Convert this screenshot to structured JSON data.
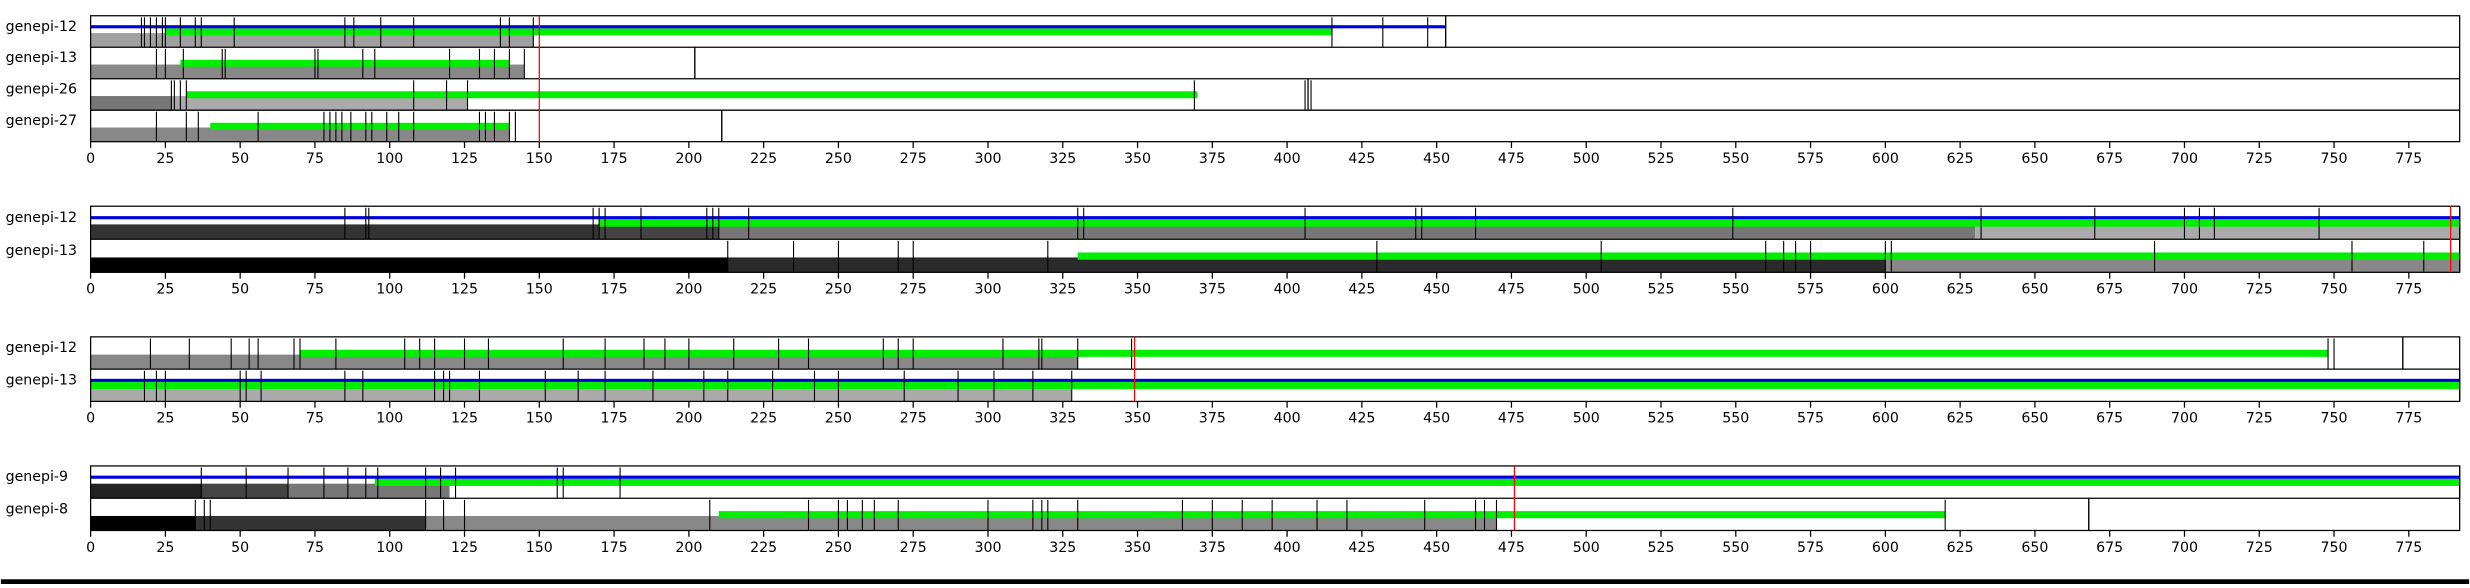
{
  "chart_data": [
    {
      "type": "timeline",
      "xlim": [
        0,
        792
      ],
      "xticks": [
        0,
        25,
        50,
        75,
        100,
        125,
        150,
        175,
        200,
        225,
        250,
        275,
        300,
        325,
        350,
        375,
        400,
        425,
        450,
        475,
        500,
        525,
        550,
        575,
        600,
        625,
        650,
        675,
        700,
        725,
        750,
        775
      ],
      "marker": 150,
      "marker_color": "#ff0000",
      "rows": [
        {
          "name": "genepi-12",
          "end": 453,
          "gray": [
            [
              0,
              148,
              "#a0a0a0"
            ]
          ],
          "green": [
            [
              25,
              415
            ]
          ],
          "blue": [
            [
              0,
              453
            ]
          ],
          "lines": [
            17,
            18,
            20,
            22,
            24,
            25,
            30,
            35,
            37,
            48,
            85,
            88,
            97,
            108,
            137,
            140,
            148,
            415,
            432,
            447,
            453
          ]
        },
        {
          "name": "genepi-13",
          "end": 202,
          "gray": [
            [
              0,
              145,
              "#888888"
            ]
          ],
          "green": [
            [
              30,
              140
            ]
          ],
          "blue": [],
          "lines": [
            22,
            25,
            31,
            44,
            45,
            75,
            76,
            91,
            95,
            120,
            130,
            135,
            140,
            145,
            202
          ]
        },
        {
          "name": "genepi-26",
          "end": 407,
          "gray": [
            [
              0,
              27,
              "#777777"
            ],
            [
              27,
              126,
              "#aaaaaa"
            ]
          ],
          "green": [
            [
              32,
              370
            ]
          ],
          "blue": [],
          "lines": [
            27,
            28,
            30,
            32,
            108,
            119,
            126,
            369,
            406,
            408
          ]
        },
        {
          "name": "genepi-27",
          "end": 211,
          "gray": [
            [
              0,
              140,
              "#888888"
            ]
          ],
          "green": [
            [
              40,
              140
            ]
          ],
          "blue": [],
          "lines": [
            22,
            32,
            36,
            56,
            78,
            80,
            82,
            84,
            87,
            92,
            94,
            99,
            103,
            108,
            130,
            132,
            135,
            140,
            142,
            211
          ]
        }
      ]
    },
    {
      "type": "timeline",
      "xlim": [
        0,
        792
      ],
      "xticks": [
        0,
        25,
        50,
        75,
        100,
        125,
        150,
        175,
        200,
        225,
        250,
        275,
        300,
        325,
        350,
        375,
        400,
        425,
        450,
        475,
        500,
        525,
        550,
        575,
        600,
        625,
        650,
        675,
        700,
        725,
        750,
        775
      ],
      "marker": 789,
      "marker_color": "#ff0000",
      "rows": [
        {
          "name": "genepi-12",
          "end": 792,
          "gray": [
            [
              0,
              170,
              "#333333"
            ],
            [
              170,
              210,
              "#444444"
            ],
            [
              210,
              630,
              "#777777"
            ],
            [
              630,
              792,
              "#aaaaaa"
            ]
          ],
          "green": [
            [
              170,
              792
            ]
          ],
          "blue": [
            [
              0,
              792
            ]
          ],
          "lines": [
            85,
            92,
            93,
            168,
            170,
            172,
            184,
            206,
            208,
            210,
            220,
            330,
            332,
            406,
            443,
            445,
            463,
            549,
            632,
            670,
            700,
            705,
            710,
            745,
            792
          ]
        },
        {
          "name": "genepi-13",
          "end": 792,
          "gray": [
            [
              0,
              213,
              "#000000"
            ],
            [
              213,
              600,
              "#2a2a2a"
            ],
            [
              600,
              792,
              "#888888"
            ]
          ],
          "green": [
            [
              330,
              792
            ]
          ],
          "blue": [],
          "lines": [
            213,
            235,
            250,
            270,
            275,
            320,
            430,
            505,
            560,
            566,
            570,
            575,
            600,
            602,
            690,
            756,
            780
          ]
        }
      ]
    },
    {
      "type": "timeline",
      "xlim": [
        0,
        792
      ],
      "xticks": [
        0,
        25,
        50,
        75,
        100,
        125,
        150,
        175,
        200,
        225,
        250,
        275,
        300,
        325,
        350,
        375,
        400,
        425,
        450,
        475,
        500,
        525,
        550,
        575,
        600,
        625,
        650,
        675,
        700,
        725,
        750,
        775
      ],
      "marker": 349,
      "marker_color": "#ff0000",
      "rows": [
        {
          "name": "genepi-12",
          "end": 773,
          "gray": [
            [
              0,
              330,
              "#888888"
            ]
          ],
          "green": [
            [
              70,
              748
            ]
          ],
          "blue": [],
          "lines": [
            20,
            33,
            47,
            53,
            56,
            68,
            70,
            82,
            105,
            110,
            115,
            125,
            133,
            158,
            172,
            185,
            192,
            200,
            215,
            230,
            240,
            265,
            270,
            275,
            305,
            317,
            318,
            330,
            348,
            748,
            750,
            773
          ]
        },
        {
          "name": "genepi-13",
          "end": 792,
          "gray": [
            [
              0,
              328,
              "#aaaaaa"
            ]
          ],
          "green": [
            [
              0,
              792
            ]
          ],
          "blue": [
            [
              0,
              792
            ]
          ],
          "lines": [
            18,
            22,
            25,
            50,
            52,
            57,
            85,
            91,
            115,
            118,
            120,
            130,
            152,
            163,
            172,
            188,
            205,
            213,
            228,
            242,
            250,
            272,
            290,
            302,
            315,
            328
          ]
        }
      ]
    },
    {
      "type": "timeline",
      "xlim": [
        0,
        792
      ],
      "xticks": [
        0,
        25,
        50,
        75,
        100,
        125,
        150,
        175,
        200,
        225,
        250,
        275,
        300,
        325,
        350,
        375,
        400,
        425,
        450,
        475,
        500,
        525,
        550,
        575,
        600,
        625,
        650,
        675,
        700,
        725,
        750,
        775
      ],
      "marker": 476,
      "marker_color": "#ff0000",
      "rows": [
        {
          "name": "genepi-9",
          "end": 792,
          "gray": [
            [
              0,
              37,
              "#222222"
            ],
            [
              37,
              66,
              "#444444"
            ],
            [
              66,
              120,
              "#777777"
            ]
          ],
          "green": [
            [
              95,
              792
            ]
          ],
          "blue": [
            [
              0,
              792
            ]
          ],
          "lines": [
            37,
            52,
            66,
            78,
            86,
            92,
            96,
            112,
            117,
            122,
            156,
            158,
            177
          ]
        },
        {
          "name": "genepi-8",
          "end": 668,
          "gray": [
            [
              0,
              35,
              "#000000"
            ],
            [
              35,
              112,
              "#333333"
            ],
            [
              112,
              470,
              "#888888"
            ]
          ],
          "green": [
            [
              210,
              620
            ]
          ],
          "blue": [],
          "lines": [
            35,
            38,
            40,
            112,
            118,
            125,
            207,
            240,
            250,
            253,
            258,
            262,
            270,
            300,
            315,
            318,
            320,
            330,
            365,
            375,
            385,
            395,
            410,
            420,
            446,
            463,
            466,
            470,
            620,
            668
          ]
        }
      ]
    }
  ]
}
